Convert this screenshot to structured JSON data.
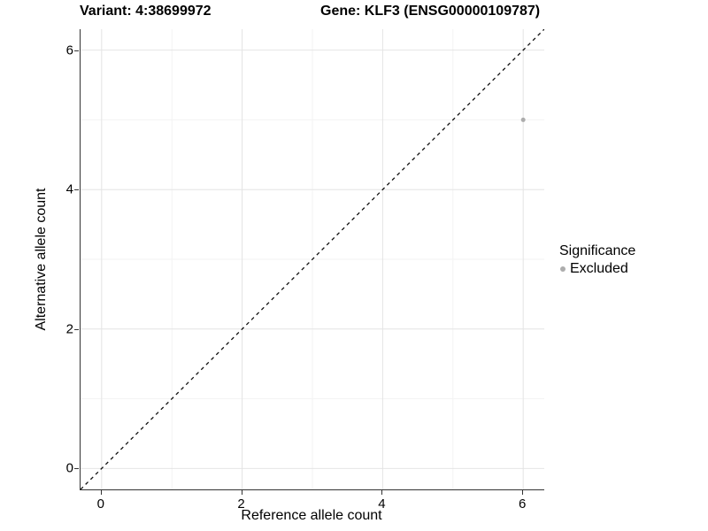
{
  "titles": {
    "variant": "Variant: 4:38699972",
    "gene": "Gene: KLF3 (ENSG00000109787)"
  },
  "axes": {
    "x": {
      "label": "Reference allele count"
    },
    "y": {
      "label": "Alternative allele count"
    }
  },
  "legend": {
    "title": "Significance",
    "items": [
      {
        "label": "Excluded",
        "color": "#adadad"
      }
    ]
  },
  "colors": {
    "background": "#ffffff",
    "axis_line": "#333333",
    "grid_major": "#e4e4e4",
    "grid_minor": "#f3f3f3",
    "reference_line": "#111111",
    "point_excluded": "#adadad",
    "text": "#000000"
  },
  "chart_data": {
    "type": "scatter",
    "title": "Variant: 4:38699972   Gene: KLF3 (ENSG00000109787)",
    "xlabel": "Reference allele count",
    "ylabel": "Alternative allele count",
    "xlim": [
      -0.3,
      6.3
    ],
    "ylim": [
      -0.3,
      6.3
    ],
    "x_ticks": [
      0,
      2,
      4,
      6
    ],
    "y_ticks": [
      0,
      2,
      4,
      6
    ],
    "x_minor_ticks": [
      1,
      3,
      5
    ],
    "y_minor_ticks": [
      1,
      3,
      5
    ],
    "grid": true,
    "legend_position": "right",
    "legend_title": "Significance",
    "series": [
      {
        "name": "Excluded",
        "color": "#adadad",
        "point_radius": 2.5,
        "points": [
          {
            "x": 6,
            "y": 5
          }
        ]
      }
    ],
    "reference_line": {
      "type": "identity",
      "slope": 1,
      "intercept": 0,
      "style": "dashed",
      "color": "#111111"
    }
  }
}
